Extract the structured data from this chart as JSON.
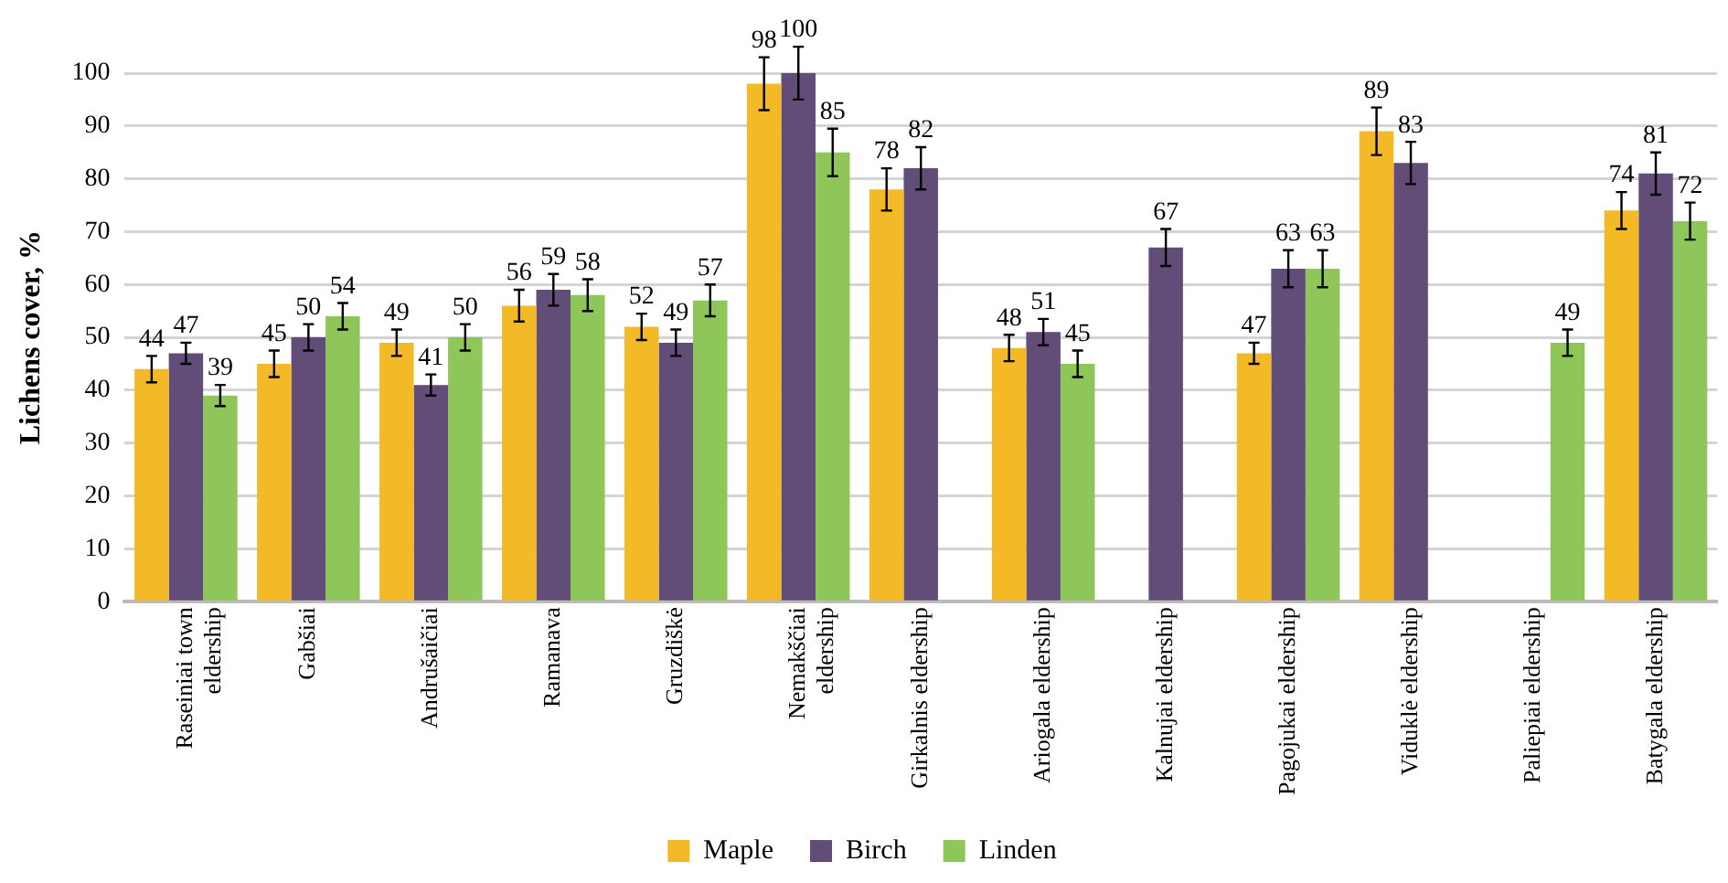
{
  "chart_data": {
    "type": "bar",
    "ylabel": "Lichens cover, %",
    "categories": [
      "Raseiniai town eldership",
      "Gabšiai",
      "Andrušaičiai",
      "Ramanava",
      "Gruzdiškė",
      "Nemakščiai eldership",
      "Girkalnis eldership",
      "Ariogala eldership",
      "Kalnujai eldership",
      "Pagojukai eldership",
      "Viduklė eldership",
      "Paliepiai eldership",
      "Batygala eldership"
    ],
    "series": [
      {
        "name": "Maple",
        "color": "#f4b927",
        "values": [
          44,
          45,
          49,
          56,
          52,
          98,
          78,
          48,
          null,
          47,
          89,
          null,
          74
        ],
        "errors": [
          2.5,
          2.5,
          2.5,
          3,
          2.5,
          5,
          4,
          2.5,
          null,
          2,
          4.5,
          null,
          3.5
        ]
      },
      {
        "name": "Birch",
        "color": "#624c78",
        "values": [
          47,
          50,
          41,
          59,
          49,
          100,
          82,
          51,
          67,
          63,
          83,
          null,
          81
        ],
        "errors": [
          2,
          2.5,
          2,
          3,
          2.5,
          5,
          4,
          2.5,
          3.5,
          3.5,
          4,
          null,
          4
        ]
      },
      {
        "name": "Linden",
        "color": "#8fc65a",
        "values": [
          39,
          54,
          50,
          58,
          57,
          85,
          null,
          45,
          null,
          63,
          null,
          49,
          72
        ],
        "errors": [
          2,
          2.5,
          2.5,
          3,
          3,
          4.5,
          null,
          2.5,
          null,
          3.5,
          null,
          2.5,
          3.5
        ]
      }
    ],
    "ylim": [
      0,
      100
    ],
    "yticks": [
      0,
      10,
      20,
      30,
      40,
      50,
      60,
      70,
      80,
      90,
      100
    ],
    "grid": "y",
    "legend": "bottom",
    "data_labels": true
  }
}
